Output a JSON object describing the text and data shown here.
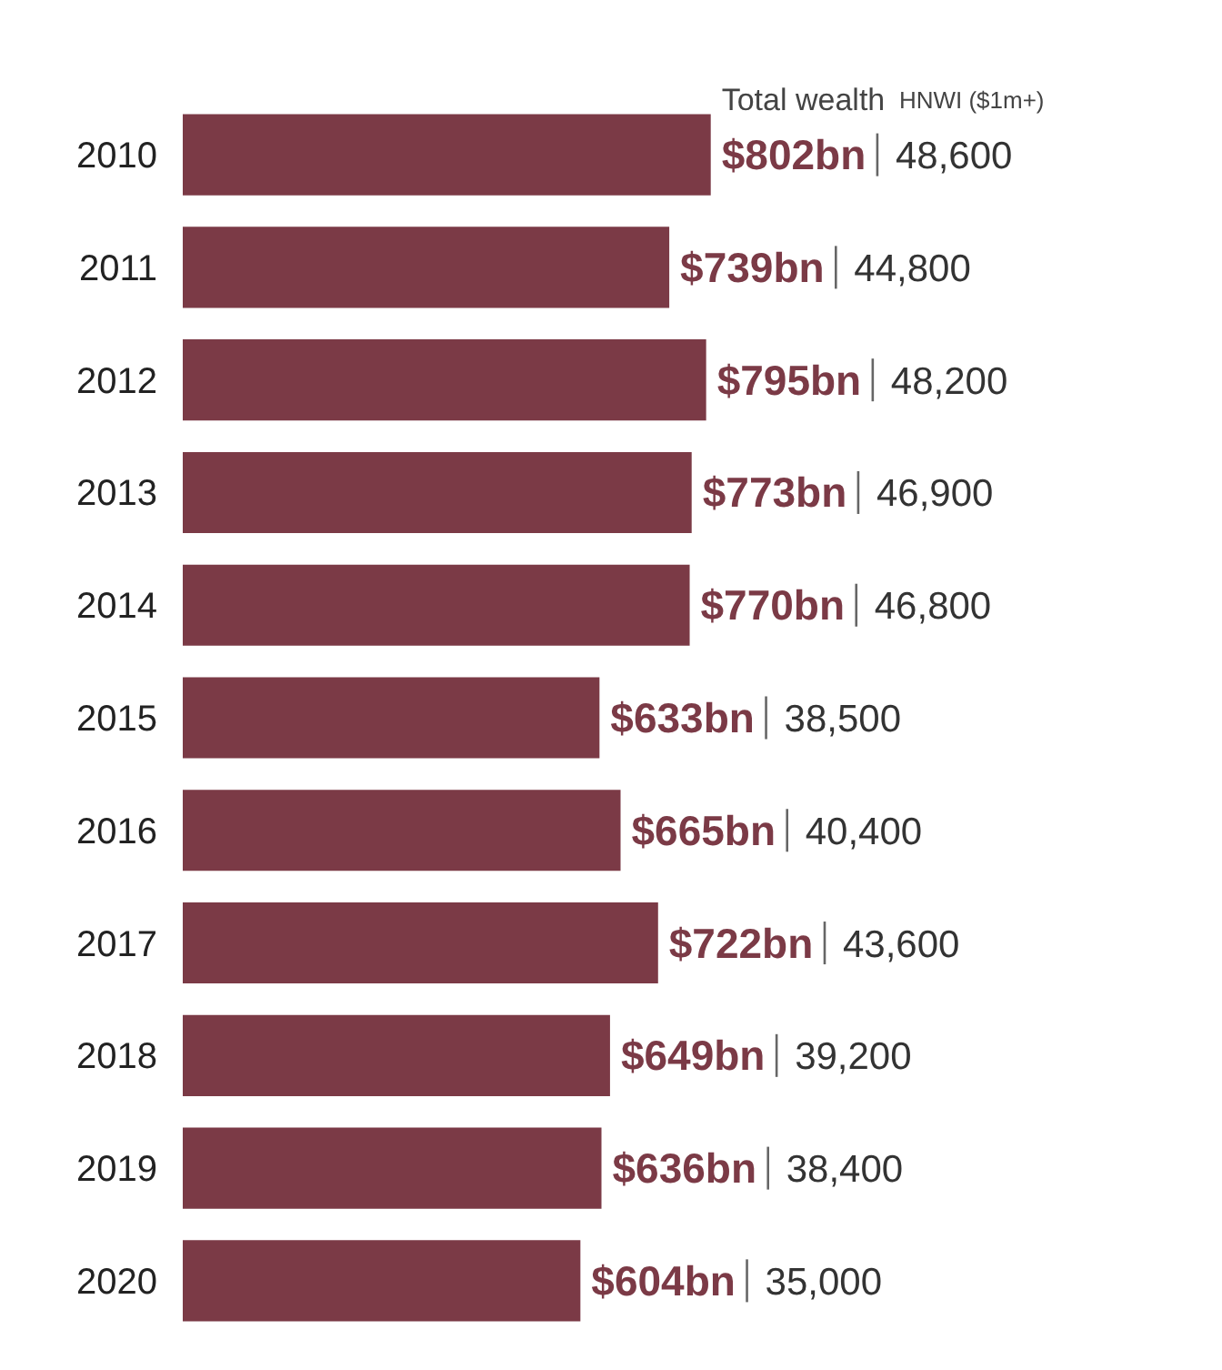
{
  "chart_data": {
    "type": "bar",
    "orientation": "horizontal",
    "categories": [
      "2010",
      "2011",
      "2012",
      "2013",
      "2014",
      "2015",
      "2016",
      "2017",
      "2018",
      "2019",
      "2020"
    ],
    "values": [
      802,
      739,
      795,
      773,
      770,
      633,
      665,
      722,
      649,
      636,
      604
    ],
    "color": "#7b3a46",
    "value_labels": [
      "$802bn",
      "$739bn",
      "$795bn",
      "$773bn",
      "$770bn",
      "$633bn",
      "$665bn",
      "$722bn",
      "$649bn",
      "$636bn",
      "$604bn"
    ],
    "annotations": [
      "Total wealth",
      "HNWI ($1m+)",
      "48,600",
      "44,800",
      "48,200",
      "46,900",
      "46,800",
      "38,500",
      "40,400",
      "43,600",
      "39,200",
      "38,400",
      "35,000"
    ],
    "grid": false
  }
}
